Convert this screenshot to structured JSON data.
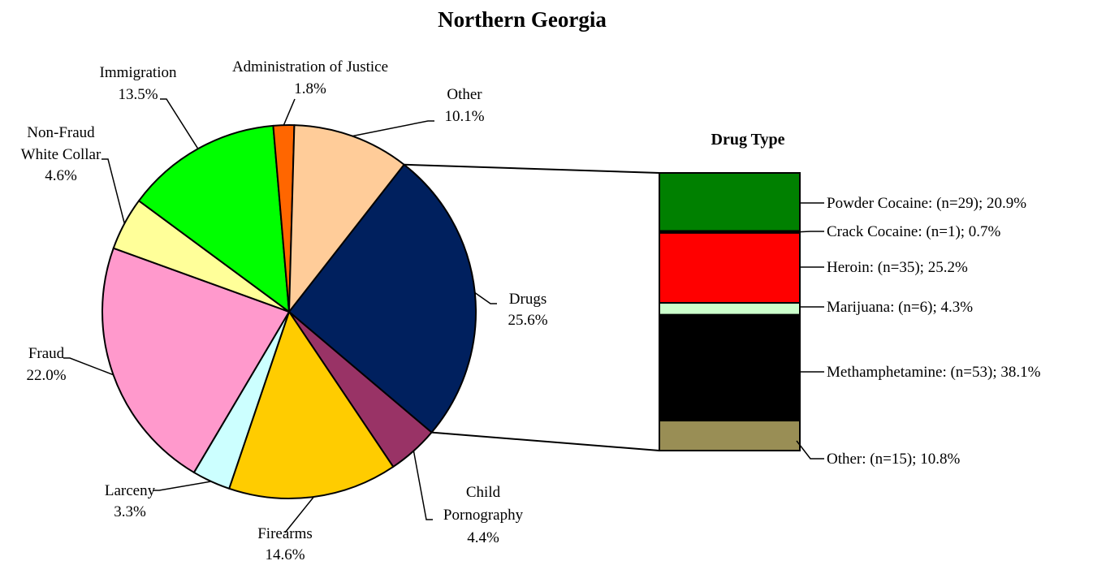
{
  "chart_data": [
    {
      "type": "pie",
      "title": "Northern Georgia",
      "unit": "%",
      "slices": [
        {
          "label": "Drugs",
          "value": 25.6,
          "display": "25.6%",
          "color": "#00205E"
        },
        {
          "label": "Child Pornography",
          "value": 4.4,
          "display": "4.4%",
          "color": "#993366"
        },
        {
          "label": "Firearms",
          "value": 14.6,
          "display": "14.6%",
          "color": "#FFCC00"
        },
        {
          "label": "Larceny",
          "value": 3.3,
          "display": "3.3%",
          "color": "#CCFFFF"
        },
        {
          "label": "Fraud",
          "value": 22.0,
          "display": "22.0%",
          "color": "#FF99CC"
        },
        {
          "label": "Non-Fraud White Collar",
          "value": 4.6,
          "display": "4.6%",
          "color": "#FFFF99"
        },
        {
          "label": "Immigration",
          "value": 13.5,
          "display": "13.5%",
          "color": "#00FF00"
        },
        {
          "label": "Administration of Justice",
          "value": 1.8,
          "display": "1.8%",
          "color": "#FF6600"
        },
        {
          "label": "Other",
          "value": 10.1,
          "display": "10.1%",
          "color": "#FFCC99"
        }
      ]
    },
    {
      "type": "bar",
      "stacked": true,
      "title": "Drug Type",
      "parent_slice": "Drugs",
      "segments": [
        {
          "label": "Powder Cocaine",
          "n_text": "(n=29)",
          "n": 29,
          "value": 20.9,
          "display": "20.9%",
          "color": "#008000"
        },
        {
          "label": "Crack Cocaine",
          "n_text": "(n=1)",
          "n": 1,
          "value": 0.7,
          "display": "0.7%",
          "color": "#000000"
        },
        {
          "label": "Heroin",
          "n_text": "(n=35)",
          "n": 35,
          "value": 25.2,
          "display": "25.2%",
          "color": "#FF0000"
        },
        {
          "label": "Marijuana",
          "n_text": "(n=6)",
          "n": 6,
          "value": 4.3,
          "display": "4.3%",
          "color": "#CCFFCC"
        },
        {
          "label": "Methamphetamine",
          "n_text": "(n=53)",
          "n": 53,
          "value": 38.1,
          "display": "38.1%",
          "color": "#000000"
        },
        {
          "label": "Other",
          "n_text": "(n=15)",
          "n": 15,
          "value": 10.8,
          "display": "10.8%",
          "color": "#998E55"
        }
      ]
    }
  ]
}
